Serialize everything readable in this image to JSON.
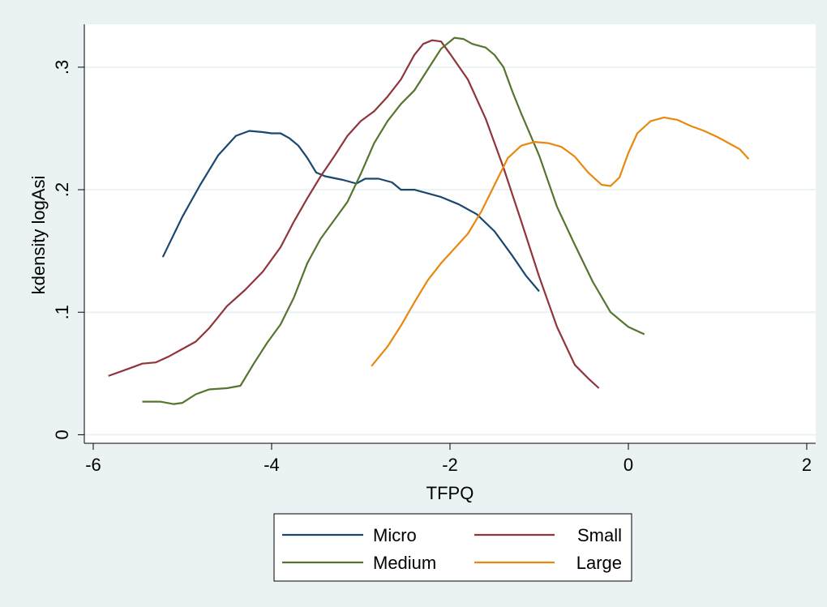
{
  "chart_data": {
    "type": "line",
    "title": "",
    "xlabel": "TFPQ",
    "ylabel": "kdensity logAsi",
    "xlim": [
      -6.1,
      2.1
    ],
    "ylim": [
      -0.007,
      0.335
    ],
    "xticks": [
      -6,
      -4,
      -2,
      0,
      2
    ],
    "xtick_labels": [
      "-6",
      "-4",
      "-2",
      "0",
      "2"
    ],
    "yticks": [
      0,
      0.1,
      0.2,
      0.3
    ],
    "ytick_labels": [
      "0",
      ".1",
      ".2",
      ".3"
    ],
    "grid": "horizontal",
    "legend_position": "bottom",
    "series": [
      {
        "name": "Micro",
        "color": "#1a476f",
        "x": [
          -5.22,
          -5.0,
          -4.8,
          -4.6,
          -4.4,
          -4.25,
          -4.1,
          -4.0,
          -3.9,
          -3.8,
          -3.7,
          -3.6,
          -3.5,
          -3.4,
          -3.2,
          -3.05,
          -2.95,
          -2.8,
          -2.65,
          -2.55,
          -2.4,
          -2.3,
          -2.1,
          -1.9,
          -1.7,
          -1.5,
          -1.3,
          -1.15,
          -1.0
        ],
        "y": [
          0.145,
          0.178,
          0.204,
          0.228,
          0.244,
          0.248,
          0.247,
          0.246,
          0.246,
          0.242,
          0.236,
          0.226,
          0.214,
          0.211,
          0.208,
          0.205,
          0.209,
          0.209,
          0.206,
          0.2,
          0.2,
          0.198,
          0.194,
          0.188,
          0.18,
          0.166,
          0.146,
          0.13,
          0.117
        ]
      },
      {
        "name": "Small",
        "color": "#90353b",
        "x": [
          -5.83,
          -5.6,
          -5.45,
          -5.3,
          -5.15,
          -5.0,
          -4.85,
          -4.7,
          -4.5,
          -4.3,
          -4.1,
          -3.9,
          -3.75,
          -3.6,
          -3.45,
          -3.3,
          -3.15,
          -3.0,
          -2.85,
          -2.7,
          -2.55,
          -2.4,
          -2.3,
          -2.2,
          -2.1,
          -2.0,
          -1.8,
          -1.6,
          -1.4,
          -1.2,
          -1.0,
          -0.8,
          -0.6,
          -0.45,
          -0.33
        ],
        "y": [
          0.048,
          0.054,
          0.058,
          0.059,
          0.064,
          0.07,
          0.076,
          0.087,
          0.105,
          0.118,
          0.133,
          0.153,
          0.174,
          0.193,
          0.211,
          0.227,
          0.244,
          0.256,
          0.264,
          0.276,
          0.29,
          0.31,
          0.319,
          0.322,
          0.321,
          0.311,
          0.29,
          0.258,
          0.218,
          0.174,
          0.129,
          0.088,
          0.057,
          0.046,
          0.038
        ]
      },
      {
        "name": "Medium",
        "color": "#55752f",
        "x": [
          -5.45,
          -5.25,
          -5.1,
          -5.0,
          -4.85,
          -4.7,
          -4.5,
          -4.35,
          -4.2,
          -4.05,
          -3.9,
          -3.75,
          -3.6,
          -3.45,
          -3.3,
          -3.15,
          -3.0,
          -2.85,
          -2.7,
          -2.55,
          -2.4,
          -2.25,
          -2.1,
          -1.95,
          -1.85,
          -1.75,
          -1.6,
          -1.5,
          -1.4,
          -1.3,
          -1.2,
          -1.0,
          -0.8,
          -0.6,
          -0.4,
          -0.2,
          0.0,
          0.18
        ],
        "y": [
          0.027,
          0.027,
          0.025,
          0.026,
          0.033,
          0.037,
          0.038,
          0.04,
          0.058,
          0.075,
          0.09,
          0.112,
          0.14,
          0.16,
          0.175,
          0.19,
          0.213,
          0.238,
          0.256,
          0.27,
          0.281,
          0.298,
          0.315,
          0.324,
          0.323,
          0.319,
          0.316,
          0.31,
          0.3,
          0.28,
          0.262,
          0.228,
          0.186,
          0.155,
          0.125,
          0.1,
          0.088,
          0.082
        ]
      },
      {
        "name": "Large",
        "color": "#e8880e",
        "x": [
          -2.88,
          -2.7,
          -2.55,
          -2.4,
          -2.25,
          -2.1,
          -1.95,
          -1.8,
          -1.65,
          -1.5,
          -1.35,
          -1.2,
          -1.05,
          -0.9,
          -0.75,
          -0.6,
          -0.45,
          -0.3,
          -0.2,
          -0.1,
          0.0,
          0.1,
          0.25,
          0.4,
          0.55,
          0.7,
          0.85,
          1.0,
          1.15,
          1.25,
          1.35
        ],
        "y": [
          0.056,
          0.072,
          0.089,
          0.108,
          0.126,
          0.14,
          0.152,
          0.164,
          0.182,
          0.204,
          0.226,
          0.236,
          0.239,
          0.238,
          0.235,
          0.227,
          0.214,
          0.204,
          0.203,
          0.21,
          0.23,
          0.246,
          0.256,
          0.259,
          0.257,
          0.252,
          0.248,
          0.243,
          0.237,
          0.233,
          0.225
        ]
      }
    ]
  }
}
